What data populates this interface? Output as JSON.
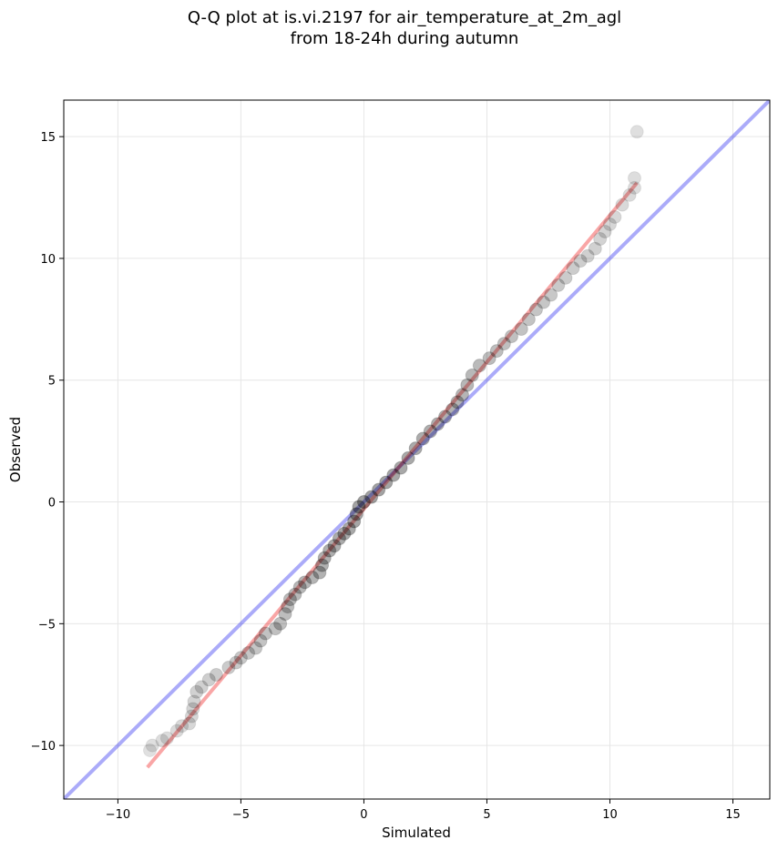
{
  "chart_data": {
    "type": "scatter",
    "title_lines": [
      "Q-Q plot at is.vi.2197 for air_temperature_at_2m_agl",
      "from 18-24h during autumn"
    ],
    "xlabel": "Simulated",
    "ylabel": "Observed",
    "xlim": [
      -12.2,
      16.5
    ],
    "ylim": [
      -12.2,
      16.5
    ],
    "xticks": [
      -10,
      -5,
      0,
      5,
      10,
      15
    ],
    "yticks": [
      -10,
      -5,
      0,
      5,
      10,
      15
    ],
    "xtick_labels": [
      "−10",
      "−5",
      "0",
      "5",
      "10",
      "15"
    ],
    "ytick_labels": [
      "−10",
      "−5",
      "0",
      "5",
      "10",
      "15"
    ],
    "grid": true,
    "identity_line": {
      "x": [
        -12.2,
        16.5
      ],
      "y": [
        -12.2,
        16.5
      ],
      "color": "#0000ee",
      "alpha": 0.33
    },
    "fit_line": {
      "x": [
        -8.8,
        11.1
      ],
      "y": [
        -10.9,
        13.1
      ],
      "color": "#ee0000",
      "alpha": 0.35
    },
    "points_color": "#000000",
    "quantiles": [
      [
        -8.7,
        -10.2
      ],
      [
        -8.6,
        -10.0
      ],
      [
        -8.2,
        -9.8
      ],
      [
        -8.0,
        -9.7
      ],
      [
        -7.6,
        -9.4
      ],
      [
        -7.4,
        -9.2
      ],
      [
        -7.1,
        -9.1
      ],
      [
        -7.0,
        -8.8
      ],
      [
        -6.95,
        -8.5
      ],
      [
        -6.9,
        -8.2
      ],
      [
        -6.8,
        -7.8
      ],
      [
        -6.6,
        -7.6
      ],
      [
        -6.3,
        -7.3
      ],
      [
        -6.0,
        -7.1
      ],
      [
        -5.5,
        -6.8
      ],
      [
        -5.2,
        -6.6
      ],
      [
        -5.0,
        -6.4
      ],
      [
        -4.7,
        -6.2
      ],
      [
        -4.4,
        -6.0
      ],
      [
        -4.2,
        -5.7
      ],
      [
        -4.0,
        -5.4
      ],
      [
        -3.6,
        -5.2
      ],
      [
        -3.4,
        -5.0
      ],
      [
        -3.2,
        -4.6
      ],
      [
        -3.1,
        -4.3
      ],
      [
        -3.0,
        -4.0
      ],
      [
        -2.8,
        -3.8
      ],
      [
        -2.6,
        -3.5
      ],
      [
        -2.4,
        -3.3
      ],
      [
        -2.1,
        -3.1
      ],
      [
        -1.8,
        -2.9
      ],
      [
        -1.7,
        -2.6
      ],
      [
        -1.6,
        -2.3
      ],
      [
        -1.4,
        -2.0
      ],
      [
        -1.2,
        -1.8
      ],
      [
        -1.0,
        -1.5
      ],
      [
        -0.8,
        -1.3
      ],
      [
        -0.6,
        -1.1
      ],
      [
        -0.4,
        -0.8
      ],
      [
        -0.3,
        -0.5
      ],
      [
        -0.2,
        -0.2
      ],
      [
        0.0,
        0.0
      ],
      [
        0.3,
        0.2
      ],
      [
        0.6,
        0.5
      ],
      [
        0.9,
        0.8
      ],
      [
        1.2,
        1.1
      ],
      [
        1.5,
        1.4
      ],
      [
        1.8,
        1.8
      ],
      [
        2.1,
        2.2
      ],
      [
        2.4,
        2.6
      ],
      [
        2.7,
        2.9
      ],
      [
        3.0,
        3.2
      ],
      [
        3.3,
        3.5
      ],
      [
        3.6,
        3.8
      ],
      [
        3.8,
        4.1
      ],
      [
        4.0,
        4.4
      ],
      [
        4.2,
        4.8
      ],
      [
        4.4,
        5.2
      ],
      [
        4.7,
        5.6
      ],
      [
        5.1,
        5.9
      ],
      [
        5.4,
        6.2
      ],
      [
        5.7,
        6.5
      ],
      [
        6.0,
        6.8
      ],
      [
        6.4,
        7.1
      ],
      [
        6.7,
        7.5
      ],
      [
        7.0,
        7.9
      ],
      [
        7.3,
        8.2
      ],
      [
        7.6,
        8.5
      ],
      [
        7.9,
        8.9
      ],
      [
        8.2,
        9.2
      ],
      [
        8.5,
        9.6
      ],
      [
        8.8,
        9.9
      ],
      [
        9.1,
        10.1
      ],
      [
        9.4,
        10.4
      ],
      [
        9.6,
        10.8
      ],
      [
        9.8,
        11.1
      ],
      [
        10.0,
        11.4
      ],
      [
        10.2,
        11.7
      ],
      [
        10.5,
        12.2
      ],
      [
        10.8,
        12.6
      ],
      [
        11.0,
        12.9
      ],
      [
        11.0,
        13.3
      ],
      [
        11.1,
        15.2
      ]
    ]
  }
}
